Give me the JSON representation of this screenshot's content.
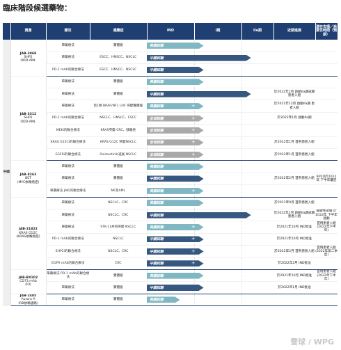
{
  "title": "臨床階段候選藥物：",
  "headers": [
    "資產",
    "療法",
    "適應症",
    "IND",
    "I期",
    "IIa期",
    "近期進展",
    "潛在市場／商業化時間（預期）"
  ],
  "region_label": "中國",
  "groups": [
    {
      "asset": [
        "JAB-3068",
        "SHP2",
        "ODD-AML"
      ],
      "rows": [
        {
          "therapy": "單藥療法",
          "indication": "實體瘤",
          "note": ""
        },
        {
          "therapy": "單藥療法",
          "indication": "ESCC、HNSCC、NSCLC",
          "note": ""
        },
        {
          "therapy": "PD-1 mAb的聯合療法",
          "indication": "ESCC、HNSCC、NSCLC",
          "note": ""
        }
      ]
    },
    {
      "asset": [
        "JAB-3312",
        "SHP2",
        "ODD-AML"
      ],
      "rows": [
        {
          "therapy": "單藥療法",
          "indication": "實體瘤",
          "note": ""
        },
        {
          "therapy": "單藥療法",
          "indication": "實體瘤",
          "note": "於2022年1月 啟動IIa期試驗 患者入組"
        },
        {
          "therapy": "單藥療法",
          "indication": "第1類 BRAF/NF1 LOF 突變實體瘤",
          "note": "於2021年12月 啟動IIa期 患者入組"
        },
        {
          "therapy": "PD-1 mAb的聯合療法",
          "indication": "NSCLC、HNSCC、ESCC",
          "note": "於2022年1月 啟動IIa期"
        },
        {
          "therapy": "MEKi的聯合療法",
          "indication": "KRAS突變 CRC、胰腺癌",
          "note": ""
        },
        {
          "therapy": "KRAS G12Ci的聯合療法",
          "indication": "KRAS G12C 突變NSCLC",
          "note": "於2022年1月 首例患者入組"
        },
        {
          "therapy": "EGFRi的聯合療法",
          "indication": "Osimertinib進展 NSCLC",
          "note": "於2022年1月 首例患者入組"
        }
      ]
    },
    {
      "asset": [
        "JAB-8263",
        "BET",
        "(MYC依賴癌症)"
      ],
      "rows": [
        {
          "therapy": "單藥療法",
          "indication": "實體瘤",
          "note": ""
        },
        {
          "therapy": "單藥療法",
          "indication": "實體瘤",
          "note": "於2022年2月 首例患者入組",
          "market": "RP2D於2022年 下半年釐定"
        },
        {
          "therapy": "單藥療法 JAKi的聯合療法",
          "indication": "MF及AML",
          "note": ""
        }
      ]
    },
    {
      "asset": [
        "JAB-21822",
        "KRAS G12C",
        "(KRAS依賴癌症)"
      ],
      "rows": [
        {
          "therapy": "單藥療法",
          "indication": "NSCLC、CRC",
          "note": "於2021年9月 首例患者入組"
        },
        {
          "therapy": "單藥療法",
          "indication": "NSCLC、CRC",
          "note": "於2022年1月 啟動IIa期試驗 患者入組",
          "market": "關鍵性試驗 於2022年 下半年啟動"
        },
        {
          "therapy": "單藥療法",
          "indication": "STK-11共同突變 NSCLC",
          "note": "於2021年10月 IND批准",
          "market": "首例患者入組 (2022年下半年)"
        },
        {
          "therapy": "PD-1 mAb的聯合療法",
          "indication": "NSCLC",
          "note": "於2021年10月 IND批准",
          "market": ""
        },
        {
          "therapy": "SHP2i的聯合療法",
          "indication": "NSCLC、CRC",
          "note": "於2022年2月 首例患者入組",
          "market": "首例患者入組 (2022年第二季度)"
        },
        {
          "therapy": "EGFR mAb的聯合療法",
          "indication": "CRC",
          "note": "於2022年2月 IND批准"
        }
      ]
    },
    {
      "asset": [
        "JAB-BX102",
        "CD73 mAb",
        "(IO)"
      ],
      "rows": [
        {
          "therapy": "單藥療法 PD-1 mAb的聯合療法",
          "indication": "實體瘤",
          "note": "於2021年10月 IND批准",
          "market": "首例患者入組 (2022年下半年)"
        },
        {
          "therapy": "單藥療法",
          "indication": "實體瘤",
          "note": "於2022年1月 IND批准"
        }
      ]
    },
    {
      "asset": [
        "JAB-2485",
        "Aurora A",
        "(RB依賴通路)"
      ],
      "rows": [
        {
          "therapy": "單藥療法",
          "indication": "實體瘤",
          "note": ""
        }
      ]
    }
  ],
  "bars": [
    {
      "label": "美國試驗",
      "color": "#7fb8c2",
      "stage": 1.0,
      "plus": false
    },
    {
      "label": "中國試驗",
      "color": "#36577f",
      "stage": 2.0,
      "plus": false
    },
    {
      "label": "中國試驗",
      "color": "#36577f",
      "stage": 1.0,
      "plus": false
    },
    {
      "label": "美國試驗",
      "color": "#7fb8c2",
      "stage": 1.0,
      "plus": false
    },
    {
      "label": "中國試驗",
      "color": "#36577f",
      "stage": 2.0,
      "plus": false
    },
    {
      "label": "美國試驗",
      "color": "#7fb8c2",
      "stage": 1.0,
      "plus": true
    },
    {
      "label": "全球試驗",
      "color": "#a9a9a9",
      "stage": 1.0,
      "plus": true
    },
    {
      "label": "全球試驗",
      "color": "#a9a9a9",
      "stage": 1.0,
      "plus": true
    },
    {
      "label": "全球試驗",
      "color": "#a9a9a9",
      "stage": 1.0,
      "plus": true
    },
    {
      "label": "全球試驗",
      "color": "#a9a9a9",
      "stage": 1.0,
      "plus": true
    },
    {
      "label": "美國試驗",
      "color": "#7fb8c2",
      "stage": 1.0,
      "plus": false
    },
    {
      "label": "中國試驗",
      "color": "#36577f",
      "stage": 1.0,
      "plus": false
    },
    {
      "label": "美國試驗",
      "color": "#7fb8c2",
      "stage": 1.0,
      "plus": true
    },
    {
      "label": "美國試驗",
      "color": "#7fb8c2",
      "stage": 1.0,
      "plus": false
    },
    {
      "label": "中國試驗",
      "color": "#36577f",
      "stage": 2.0,
      "plus": false
    },
    {
      "label": "美國試驗",
      "color": "#7fb8c2",
      "stage": 1.0,
      "plus": true
    },
    {
      "label": "中國試驗",
      "color": "#36577f",
      "stage": 1.0,
      "plus": true
    },
    {
      "label": "中國試驗",
      "color": "#36577f",
      "stage": 1.0,
      "plus": true
    },
    {
      "label": "中國試驗",
      "color": "#36577f",
      "stage": 1.0,
      "plus": true
    },
    {
      "label": "美國試驗",
      "color": "#7fb8c2",
      "stage": 1.0,
      "plus": false
    },
    {
      "label": "中國試驗",
      "color": "#36577f",
      "stage": 1.0,
      "plus": false
    },
    {
      "label": "美國試驗",
      "color": "#7fb8c2",
      "stage": 0.5,
      "plus": false
    }
  ],
  "watermark": "雪球 / WPG"
}
